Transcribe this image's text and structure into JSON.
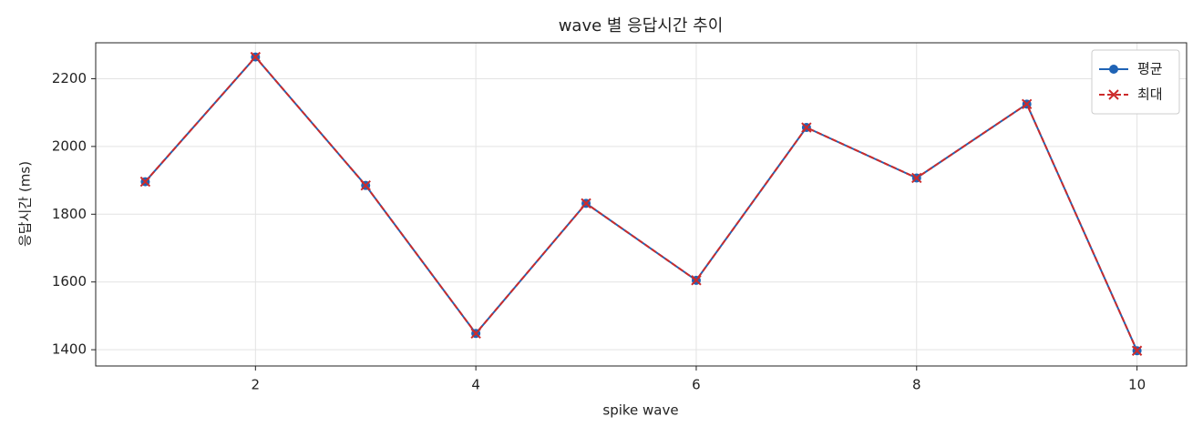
{
  "chart_data": {
    "type": "line",
    "title": "wave 별 응답시간 추이",
    "x_label": "spike wave",
    "y_label": "응답시간 (ms)",
    "x": [
      1,
      2,
      3,
      4,
      5,
      6,
      7,
      8,
      9,
      10
    ],
    "series": [
      {
        "name": "평균",
        "color": "#1f63b5",
        "marker": "circle",
        "dashed": false,
        "values": [
          1896,
          2264,
          1885,
          1448,
          1832,
          1605,
          2056,
          1907,
          2125,
          1397
        ]
      },
      {
        "name": "최대",
        "color": "#cc2b2b",
        "marker": "x",
        "dashed": true,
        "values": [
          1896,
          2264,
          1885,
          1448,
          1832,
          1605,
          2056,
          1907,
          2125,
          1397
        ]
      }
    ],
    "xlim": [
      0.55,
      10.45
    ],
    "ylim": [
      1352,
      2306
    ],
    "xticks": [
      2,
      4,
      6,
      8,
      10
    ],
    "yticks": [
      1400,
      1600,
      1800,
      2000,
      2200
    ],
    "grid": true,
    "legend": "upper right"
  }
}
